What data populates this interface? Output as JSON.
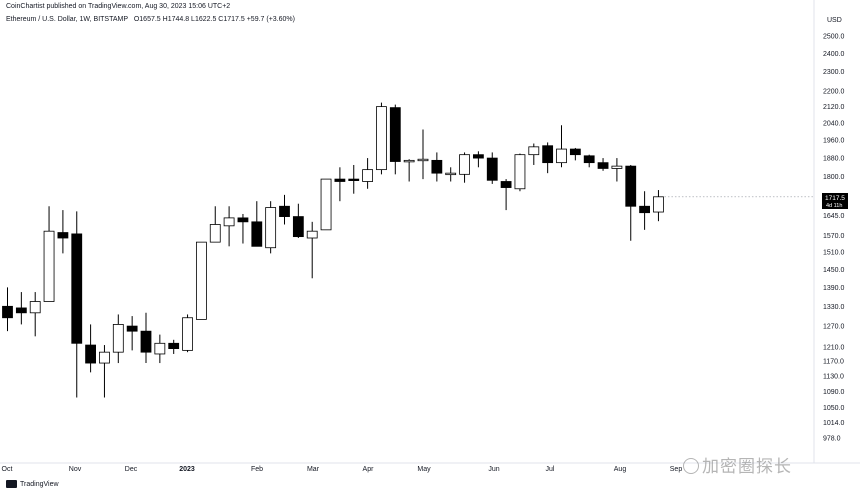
{
  "header": {
    "publisher": "CoinChartist published on TradingView.com, Aug 30, 2023 15:06 UTC+2",
    "symbol_line": "Ethereum / U.S. Dollar, 1W, BITSTAMP",
    "ohlc_line": "O1657.5  H1744.8  L1622.5  C1717.5  +59.7 (+3.60%)"
  },
  "footer": {
    "logo_label": "TradingView"
  },
  "watermark": {
    "text": "加密圈探长"
  },
  "colors": {
    "up_fill": "#ffffff",
    "down_fill": "#000000",
    "wick": "#000000",
    "axis_text": "#131722",
    "price_badge": "#000000"
  },
  "chart_data": {
    "type": "candlestick",
    "title": "Ethereum / U.S. Dollar, 1W, BITSTAMP",
    "currency_label": "USD",
    "y_scale": "log",
    "y_ticks": [
      2500.0,
      2400.0,
      2300.0,
      2200.0,
      2120.0,
      2040.0,
      1960.0,
      1880.0,
      1800.0,
      1645.0,
      1570.0,
      1510.0,
      1450.0,
      1390.0,
      1330.0,
      1270.0,
      1210.0,
      1170.0,
      1130.0,
      1090.0,
      1050.0,
      1014.0,
      978.0
    ],
    "x_ticks": [
      "Oct",
      "Nov",
      "Dec",
      "2023",
      "Feb",
      "Mar",
      "Apr",
      "May",
      "Jun",
      "Jul",
      "Aug",
      "Sep"
    ],
    "last_price": "1717.5",
    "last_price_countdown": "4d 11h",
    "candles": [
      {
        "o": 1330,
        "h": 1390,
        "l": 1255,
        "c": 1295
      },
      {
        "o": 1325,
        "h": 1375,
        "l": 1275,
        "c": 1310
      },
      {
        "o": 1310,
        "h": 1375,
        "l": 1240,
        "c": 1345
      },
      {
        "o": 1345,
        "h": 1680,
        "l": 1345,
        "c": 1585
      },
      {
        "o": 1580,
        "h": 1665,
        "l": 1505,
        "c": 1560
      },
      {
        "o": 1575,
        "h": 1660,
        "l": 1075,
        "c": 1220
      },
      {
        "o": 1215,
        "h": 1275,
        "l": 1140,
        "c": 1165
      },
      {
        "o": 1165,
        "h": 1215,
        "l": 1075,
        "c": 1195
      },
      {
        "o": 1195,
        "h": 1305,
        "l": 1165,
        "c": 1275
      },
      {
        "o": 1270,
        "h": 1300,
        "l": 1200,
        "c": 1255
      },
      {
        "o": 1255,
        "h": 1310,
        "l": 1165,
        "c": 1195
      },
      {
        "o": 1190,
        "h": 1245,
        "l": 1165,
        "c": 1220
      },
      {
        "o": 1220,
        "h": 1230,
        "l": 1190,
        "c": 1205
      },
      {
        "o": 1200,
        "h": 1305,
        "l": 1195,
        "c": 1295
      },
      {
        "o": 1290,
        "h": 1545,
        "l": 1290,
        "c": 1545
      },
      {
        "o": 1545,
        "h": 1680,
        "l": 1545,
        "c": 1610
      },
      {
        "o": 1605,
        "h": 1680,
        "l": 1530,
        "c": 1635
      },
      {
        "o": 1635,
        "h": 1650,
        "l": 1540,
        "c": 1620
      },
      {
        "o": 1620,
        "h": 1700,
        "l": 1530,
        "c": 1530
      },
      {
        "o": 1525,
        "h": 1700,
        "l": 1505,
        "c": 1675
      },
      {
        "o": 1680,
        "h": 1725,
        "l": 1610,
        "c": 1640
      },
      {
        "o": 1640,
        "h": 1690,
        "l": 1560,
        "c": 1565
      },
      {
        "o": 1560,
        "h": 1620,
        "l": 1420,
        "c": 1585
      },
      {
        "o": 1590,
        "h": 1790,
        "l": 1590,
        "c": 1790
      },
      {
        "o": 1790,
        "h": 1840,
        "l": 1700,
        "c": 1780
      },
      {
        "o": 1790,
        "h": 1850,
        "l": 1730,
        "c": 1785
      },
      {
        "o": 1780,
        "h": 1880,
        "l": 1750,
        "c": 1830
      },
      {
        "o": 1830,
        "h": 2140,
        "l": 1810,
        "c": 2120
      },
      {
        "o": 2115,
        "h": 2130,
        "l": 1810,
        "c": 1865
      },
      {
        "o": 1865,
        "h": 1875,
        "l": 1780,
        "c": 1870
      },
      {
        "o": 1870,
        "h": 2010,
        "l": 1790,
        "c": 1875
      },
      {
        "o": 1870,
        "h": 1905,
        "l": 1780,
        "c": 1815
      },
      {
        "o": 1810,
        "h": 1840,
        "l": 1780,
        "c": 1815
      },
      {
        "o": 1810,
        "h": 1905,
        "l": 1775,
        "c": 1895
      },
      {
        "o": 1895,
        "h": 1910,
        "l": 1840,
        "c": 1880
      },
      {
        "o": 1880,
        "h": 1905,
        "l": 1770,
        "c": 1785
      },
      {
        "o": 1780,
        "h": 1790,
        "l": 1665,
        "c": 1755
      },
      {
        "o": 1750,
        "h": 1900,
        "l": 1740,
        "c": 1895
      },
      {
        "o": 1895,
        "h": 1945,
        "l": 1850,
        "c": 1930
      },
      {
        "o": 1935,
        "h": 1950,
        "l": 1815,
        "c": 1860
      },
      {
        "o": 1860,
        "h": 2030,
        "l": 1840,
        "c": 1920
      },
      {
        "o": 1920,
        "h": 1925,
        "l": 1870,
        "c": 1895
      },
      {
        "o": 1890,
        "h": 1895,
        "l": 1840,
        "c": 1860
      },
      {
        "o": 1860,
        "h": 1880,
        "l": 1825,
        "c": 1835
      },
      {
        "o": 1835,
        "h": 1880,
        "l": 1780,
        "c": 1845
      },
      {
        "o": 1845,
        "h": 1850,
        "l": 1550,
        "c": 1680
      },
      {
        "o": 1680,
        "h": 1740,
        "l": 1590,
        "c": 1655
      },
      {
        "o": 1657.5,
        "h": 1744.8,
        "l": 1622.5,
        "c": 1717.5
      }
    ]
  }
}
